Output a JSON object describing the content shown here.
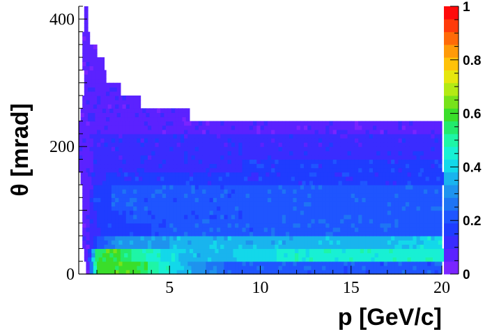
{
  "chart_data": {
    "type": "heatmap",
    "title": "",
    "xlabel": "p [GeV/c]",
    "ylabel": "θ [mrad]",
    "xlim": [
      0,
      20
    ],
    "ylim": [
      0,
      420
    ],
    "zlim": [
      0,
      1
    ],
    "x_ticks": [
      5,
      10,
      15,
      20
    ],
    "x_tick_labels": [
      "5",
      "10",
      "15",
      "20"
    ],
    "y_ticks": [
      0,
      200,
      400
    ],
    "y_tick_labels": [
      "0",
      "200",
      "400"
    ],
    "z_ticks": [
      0,
      0.2,
      0.4,
      0.6,
      0.8,
      1
    ],
    "z_tick_labels": [
      "0",
      "0.2",
      "0.4",
      "0.6",
      "0.8",
      "1"
    ],
    "palette": [
      "#7a24ff",
      "#5b22ff",
      "#3a2cff",
      "#1f3cff",
      "#1f55ff",
      "#1e74f4",
      "#1e93ee",
      "#19b4ee",
      "#13d8ea",
      "#18f0d4",
      "#1ef5a6",
      "#22ea6c",
      "#3ade2a",
      "#77e21a",
      "#b3ea14",
      "#e6e60e",
      "#ffc20a",
      "#ff9a08",
      "#ff6a08",
      "#ff3a0a",
      "#ff0a0a"
    ],
    "grid": false,
    "legend": "none",
    "bands": [
      {
        "y": [
          0,
          20
        ],
        "z": [
          [
            0.5,
            0.05
          ],
          [
            1.0,
            0.58
          ],
          [
            1.5,
            0.6
          ],
          [
            3.0,
            0.6
          ],
          [
            4.0,
            0.5
          ],
          [
            6.0,
            0.34
          ],
          [
            8.0,
            0.22
          ],
          [
            12.0,
            0.18
          ],
          [
            16.0,
            0.18
          ],
          [
            20.0,
            0.2
          ]
        ]
      },
      {
        "y": [
          20,
          40
        ],
        "z": [
          [
            0.5,
            0.05
          ],
          [
            1.0,
            0.55
          ],
          [
            2.0,
            0.6
          ],
          [
            4.0,
            0.45
          ],
          [
            6.0,
            0.35
          ],
          [
            7.0,
            0.33
          ],
          [
            10.0,
            0.42
          ],
          [
            12.0,
            0.43
          ],
          [
            15.0,
            0.44
          ],
          [
            18.0,
            0.47
          ],
          [
            20.0,
            0.46
          ]
        ]
      },
      {
        "y": [
          40,
          60
        ],
        "z": [
          [
            0.5,
            0.05
          ],
          [
            1.0,
            0.2
          ],
          [
            2.0,
            0.28
          ],
          [
            4.0,
            0.32
          ],
          [
            6.0,
            0.33
          ],
          [
            10.0,
            0.35
          ],
          [
            15.0,
            0.36
          ],
          [
            20.0,
            0.38
          ]
        ]
      },
      {
        "y": [
          60,
          80
        ],
        "z": [
          [
            0.5,
            0.05
          ],
          [
            1.0,
            0.12
          ],
          [
            2.0,
            0.16
          ],
          [
            6.0,
            0.19
          ],
          [
            12.0,
            0.21
          ],
          [
            20.0,
            0.22
          ]
        ]
      },
      {
        "y": [
          80,
          100
        ],
        "z": [
          [
            0.5,
            0.05
          ],
          [
            1.0,
            0.14
          ],
          [
            2.0,
            0.17
          ],
          [
            6.0,
            0.2
          ],
          [
            12.0,
            0.21
          ],
          [
            20.0,
            0.22
          ]
        ]
      },
      {
        "y": [
          100,
          120
        ],
        "z": [
          [
            0.5,
            0.05
          ],
          [
            1.0,
            0.15
          ],
          [
            2.0,
            0.18
          ],
          [
            6.0,
            0.2
          ],
          [
            12.0,
            0.21
          ],
          [
            20.0,
            0.22
          ]
        ]
      },
      {
        "y": [
          120,
          140
        ],
        "z": [
          [
            0.5,
            0.05
          ],
          [
            1.0,
            0.16
          ],
          [
            2.0,
            0.18
          ],
          [
            6.0,
            0.2
          ],
          [
            12.0,
            0.21
          ],
          [
            20.0,
            0.22
          ]
        ]
      },
      {
        "y": [
          140,
          160
        ],
        "z": [
          [
            0.5,
            0.05
          ],
          [
            1.0,
            0.12
          ],
          [
            2.0,
            0.13
          ],
          [
            6.0,
            0.13
          ],
          [
            12.0,
            0.14
          ],
          [
            20.0,
            0.14
          ]
        ]
      },
      {
        "y": [
          160,
          180
        ],
        "z": [
          [
            0.5,
            0.05
          ],
          [
            1.0,
            0.11
          ],
          [
            2.0,
            0.12
          ],
          [
            6.0,
            0.12
          ],
          [
            12.0,
            0.13
          ],
          [
            20.0,
            0.13
          ]
        ]
      },
      {
        "y": [
          180,
          200
        ],
        "z": [
          [
            0.5,
            0.06
          ],
          [
            1.0,
            0.09
          ],
          [
            2.0,
            0.1
          ],
          [
            6.0,
            0.11
          ],
          [
            12.0,
            0.12
          ],
          [
            20.0,
            0.12
          ]
        ]
      },
      {
        "y": [
          200,
          220
        ],
        "z": [
          [
            0.5,
            0.06
          ],
          [
            1.0,
            0.08
          ],
          [
            2.0,
            0.09
          ],
          [
            6.0,
            0.1
          ],
          [
            12.0,
            0.1
          ],
          [
            20.0,
            0.1
          ]
        ]
      },
      {
        "y": [
          220,
          240
        ],
        "z": [
          [
            0.5,
            0.04
          ],
          [
            1.0,
            0.05
          ],
          [
            6.0,
            0.05
          ],
          [
            20.0,
            0.05
          ]
        ]
      },
      {
        "y": [
          240,
          260
        ],
        "z": [
          [
            0.5,
            0.04
          ],
          [
            6.0,
            0.04
          ],
          [
            20.0,
            0.04
          ]
        ]
      },
      {
        "y": [
          260,
          280
        ],
        "z": [
          [
            0.5,
            0.04
          ],
          [
            20.0,
            0.04
          ]
        ]
      },
      {
        "y": [
          280,
          300
        ],
        "z": [
          [
            0.5,
            0.04
          ],
          [
            20.0,
            0.04
          ]
        ]
      },
      {
        "y": [
          300,
          420
        ],
        "z": [
          [
            0.5,
            0.04
          ],
          [
            20.0,
            0.04
          ]
        ]
      }
    ],
    "boundary": [
      {
        "y": [
          0,
          20
        ],
        "x": [
          0.4,
          20.0
        ]
      },
      {
        "y": [
          20,
          40
        ],
        "x": [
          0.3,
          20.0
        ]
      },
      {
        "y": [
          40,
          60
        ],
        "x": [
          0.2,
          20.0
        ]
      },
      {
        "y": [
          60,
          80
        ],
        "x": [
          0.2,
          20.0
        ]
      },
      {
        "y": [
          80,
          100
        ],
        "x": [
          0.2,
          20.0
        ]
      },
      {
        "y": [
          100,
          120
        ],
        "x": [
          0.2,
          20.0
        ]
      },
      {
        "y": [
          120,
          140
        ],
        "x": [
          0.2,
          20.0
        ]
      },
      {
        "y": [
          140,
          160
        ],
        "x": [
          0.1,
          20.0
        ]
      },
      {
        "y": [
          160,
          180
        ],
        "x": [
          0.0,
          20.0
        ]
      },
      {
        "y": [
          180,
          200
        ],
        "x": [
          0.0,
          20.0
        ]
      },
      {
        "y": [
          200,
          220
        ],
        "x": [
          0.0,
          20.0
        ]
      },
      {
        "y": [
          220,
          240
        ],
        "x": [
          0.0,
          19.9
        ]
      },
      {
        "y": [
          240,
          260
        ],
        "x": [
          0.1,
          6.0
        ]
      },
      {
        "y": [
          260,
          280
        ],
        "x": [
          0.2,
          3.4
        ]
      },
      {
        "y": [
          280,
          300
        ],
        "x": [
          0.3,
          2.3
        ]
      },
      {
        "y": [
          300,
          320
        ],
        "x": [
          0.3,
          1.5
        ]
      },
      {
        "y": [
          320,
          340
        ],
        "x": [
          0.2,
          1.3
        ]
      },
      {
        "y": [
          340,
          360
        ],
        "x": [
          0.2,
          1.0
        ]
      },
      {
        "y": [
          360,
          380
        ],
        "x": [
          0.2,
          0.6
        ]
      },
      {
        "y": [
          380,
          400
        ],
        "x": [
          0.3,
          0.5
        ]
      },
      {
        "y": [
          400,
          420
        ],
        "x": [
          0.3,
          0.5
        ]
      }
    ]
  }
}
